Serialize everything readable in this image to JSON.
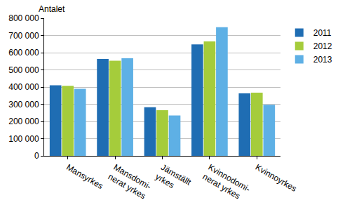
{
  "chart_data": {
    "type": "bar",
    "ylabel": "Antalet",
    "categories": [
      "Mansyrkes",
      "Mansdomi-\nnerat yrkes",
      "Jämställt\nyrkes",
      "Kvinnodomi-\nnerat yrkes",
      "Kvinnoyrkes"
    ],
    "series": [
      {
        "name": "2011",
        "color": "#1f6db3",
        "values": [
          410000,
          563000,
          283000,
          648000,
          363000
        ]
      },
      {
        "name": "2012",
        "color": "#a5cc3b",
        "values": [
          407000,
          553000,
          265000,
          665000,
          367000
        ]
      },
      {
        "name": "2013",
        "color": "#5eb0e5",
        "values": [
          390000,
          567000,
          235000,
          748000,
          297000
        ]
      }
    ],
    "ylim": [
      0,
      800000
    ],
    "yticks": [
      0,
      {
        "value": 100000,
        "label": "100 000"
      },
      {
        "value": 200000,
        "label": "200 000"
      },
      {
        "value": 300000,
        "label": "300 000"
      },
      {
        "value": 400000,
        "label": "400 000"
      },
      {
        "value": 500000,
        "label": "500 000"
      },
      {
        "value": 600000,
        "label": "600 000"
      },
      {
        "value": 700000,
        "label": "700 000"
      },
      {
        "value": 800000,
        "label": "800 000"
      }
    ],
    "grid": true,
    "legend": "right"
  }
}
